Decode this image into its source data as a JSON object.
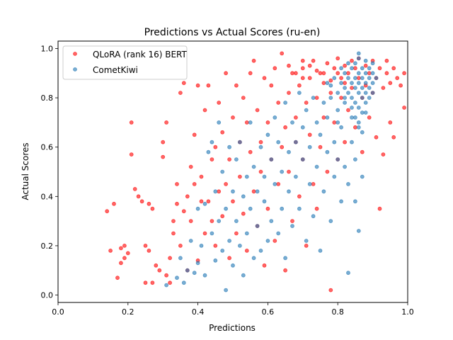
{
  "chart_data": {
    "type": "scatter",
    "title": "Predictions vs Actual Scores (ru-en)",
    "xlabel": "Predictions",
    "ylabel": "Actual Scores",
    "xlim": [
      0.0,
      1.0
    ],
    "ylim": [
      -0.03,
      1.03
    ],
    "xticks": [
      "0.0",
      "0.2",
      "0.4",
      "0.6",
      "0.8",
      "1.0"
    ],
    "yticks": [
      "0.0",
      "0.2",
      "0.4",
      "0.6",
      "0.8",
      "1.0"
    ],
    "grid": false,
    "legend_position": "top-left",
    "series": [
      {
        "name": "QLoRA (rank 16) BERT",
        "color": "#ff0000",
        "points": [
          [
            0.14,
            0.34
          ],
          [
            0.15,
            0.18
          ],
          [
            0.16,
            0.37
          ],
          [
            0.17,
            0.07
          ],
          [
            0.18,
            0.19
          ],
          [
            0.18,
            0.13
          ],
          [
            0.19,
            0.15
          ],
          [
            0.19,
            0.2
          ],
          [
            0.2,
            0.17
          ],
          [
            0.21,
            0.7
          ],
          [
            0.21,
            0.57
          ],
          [
            0.22,
            0.43
          ],
          [
            0.23,
            0.4
          ],
          [
            0.24,
            0.38
          ],
          [
            0.25,
            0.2
          ],
          [
            0.25,
            0.05
          ],
          [
            0.26,
            0.18
          ],
          [
            0.26,
            0.37
          ],
          [
            0.27,
            0.35
          ],
          [
            0.27,
            0.05
          ],
          [
            0.28,
            0.12
          ],
          [
            0.29,
            0.1
          ],
          [
            0.3,
            0.62
          ],
          [
            0.3,
            0.56
          ],
          [
            0.31,
            0.7
          ],
          [
            0.31,
            0.08
          ],
          [
            0.32,
            0.05
          ],
          [
            0.32,
            0.15
          ],
          [
            0.33,
            0.25
          ],
          [
            0.33,
            0.3
          ],
          [
            0.34,
            0.37
          ],
          [
            0.34,
            0.45
          ],
          [
            0.35,
            0.82
          ],
          [
            0.35,
            0.2
          ],
          [
            0.36,
            0.86
          ],
          [
            0.36,
            0.34
          ],
          [
            0.37,
            0.4
          ],
          [
            0.37,
            0.1
          ],
          [
            0.38,
            0.52
          ],
          [
            0.38,
            0.3
          ],
          [
            0.39,
            0.45
          ],
          [
            0.39,
            0.65
          ],
          [
            0.4,
            0.85
          ],
          [
            0.4,
            0.14
          ],
          [
            0.41,
            0.38
          ],
          [
            0.41,
            0.48
          ],
          [
            0.42,
            0.25
          ],
          [
            0.42,
            0.75
          ],
          [
            0.43,
            0.85
          ],
          [
            0.43,
            0.38
          ],
          [
            0.44,
            0.55
          ],
          [
            0.44,
            0.3
          ],
          [
            0.45,
            0.6
          ],
          [
            0.45,
            0.2
          ],
          [
            0.46,
            0.42
          ],
          [
            0.46,
            0.78
          ],
          [
            0.47,
            0.32
          ],
          [
            0.47,
            0.66
          ],
          [
            0.48,
            0.9
          ],
          [
            0.48,
            0.45
          ],
          [
            0.49,
            0.55
          ],
          [
            0.49,
            0.15
          ],
          [
            0.5,
            0.72
          ],
          [
            0.5,
            0.38
          ],
          [
            0.51,
            0.85
          ],
          [
            0.51,
            0.25
          ],
          [
            0.52,
            0.62
          ],
          [
            0.52,
            0.48
          ],
          [
            0.53,
            0.8
          ],
          [
            0.53,
            0.33
          ],
          [
            0.54,
            0.7
          ],
          [
            0.54,
            0.18
          ],
          [
            0.55,
            0.9
          ],
          [
            0.55,
            0.58
          ],
          [
            0.56,
            0.42
          ],
          [
            0.56,
            0.95
          ],
          [
            0.57,
            0.28
          ],
          [
            0.57,
            0.75
          ],
          [
            0.58,
            0.62
          ],
          [
            0.58,
            0.5
          ],
          [
            0.59,
            0.88
          ],
          [
            0.59,
            0.12
          ],
          [
            0.6,
            0.7
          ],
          [
            0.6,
            0.35
          ],
          [
            0.61,
            0.85
          ],
          [
            0.61,
            0.55
          ],
          [
            0.62,
            0.92
          ],
          [
            0.62,
            0.22
          ],
          [
            0.63,
            0.78
          ],
          [
            0.63,
            0.45
          ],
          [
            0.64,
            0.6
          ],
          [
            0.64,
            0.98
          ],
          [
            0.65,
            0.68
          ],
          [
            0.65,
            0.1
          ],
          [
            0.66,
            0.82
          ],
          [
            0.66,
            0.5
          ],
          [
            0.67,
            0.9
          ],
          [
            0.67,
            0.3
          ],
          [
            0.68,
            0.72
          ],
          [
            0.68,
            0.62
          ],
          [
            0.69,
            0.85
          ],
          [
            0.69,
            0.4
          ],
          [
            0.7,
            0.92
          ],
          [
            0.7,
            0.55
          ],
          [
            0.71,
            0.78
          ],
          [
            0.71,
            0.2
          ],
          [
            0.72,
            0.88
          ],
          [
            0.72,
            0.65
          ],
          [
            0.73,
            0.95
          ],
          [
            0.73,
            0.45
          ],
          [
            0.74,
            0.8
          ],
          [
            0.74,
            0.35
          ],
          [
            0.75,
            0.9
          ],
          [
            0.75,
            0.6
          ],
          [
            0.76,
            0.86
          ],
          [
            0.76,
            0.72
          ],
          [
            0.77,
            0.94
          ],
          [
            0.77,
            0.5
          ],
          [
            0.78,
            0.82
          ],
          [
            0.78,
            0.02
          ],
          [
            0.79,
            0.92
          ],
          [
            0.79,
            0.7
          ],
          [
            0.8,
            0.96
          ],
          [
            0.8,
            0.55
          ],
          [
            0.81,
            0.88
          ],
          [
            0.81,
            0.8
          ],
          [
            0.82,
            0.93
          ],
          [
            0.82,
            0.62
          ],
          [
            0.83,
            0.9
          ],
          [
            0.83,
            0.75
          ],
          [
            0.84,
            0.95
          ],
          [
            0.84,
            0.84
          ],
          [
            0.85,
            0.92
          ],
          [
            0.85,
            0.68
          ],
          [
            0.86,
            0.88
          ],
          [
            0.86,
            0.96
          ],
          [
            0.87,
            0.8
          ],
          [
            0.87,
            0.58
          ],
          [
            0.88,
            0.93
          ],
          [
            0.88,
            0.85
          ],
          [
            0.89,
            0.9
          ],
          [
            0.89,
            0.72
          ],
          [
            0.9,
            0.95
          ],
          [
            0.9,
            0.82
          ],
          [
            0.91,
            0.88
          ],
          [
            0.91,
            0.64
          ],
          [
            0.92,
            0.92
          ],
          [
            0.92,
            0.35
          ],
          [
            0.93,
            0.57
          ],
          [
            0.93,
            0.84
          ],
          [
            0.94,
            0.9
          ],
          [
            0.94,
            0.95
          ],
          [
            0.95,
            0.86
          ],
          [
            0.95,
            0.7
          ],
          [
            0.96,
            0.92
          ],
          [
            0.97,
            0.88
          ],
          [
            0.98,
            0.85
          ],
          [
            0.99,
            0.76
          ],
          [
            0.99,
            0.9
          ],
          [
            0.96,
            0.64
          ],
          [
            0.66,
            0.93
          ],
          [
            0.68,
            0.9
          ],
          [
            0.7,
            0.88
          ],
          [
            0.72,
            0.93
          ],
          [
            0.74,
            0.91
          ],
          [
            0.76,
            0.9
          ],
          [
            0.78,
            0.87
          ],
          [
            0.8,
            0.9
          ],
          [
            0.82,
            0.86
          ],
          [
            0.7,
            0.95
          ]
        ]
      },
      {
        "name": "CometKiwi",
        "color": "#1f77b4",
        "points": [
          [
            0.31,
            0.04
          ],
          [
            0.34,
            0.07
          ],
          [
            0.35,
            0.15
          ],
          [
            0.36,
            0.05
          ],
          [
            0.37,
            0.1
          ],
          [
            0.38,
            0.22
          ],
          [
            0.39,
            0.09
          ],
          [
            0.4,
            0.13
          ],
          [
            0.4,
            0.35
          ],
          [
            0.41,
            0.2
          ],
          [
            0.42,
            0.08
          ],
          [
            0.42,
            0.37
          ],
          [
            0.43,
            0.58
          ],
          [
            0.44,
            0.25
          ],
          [
            0.44,
            0.62
          ],
          [
            0.45,
            0.14
          ],
          [
            0.45,
            0.42
          ],
          [
            0.46,
            0.3
          ],
          [
            0.46,
            0.7
          ],
          [
            0.47,
            0.18
          ],
          [
            0.47,
            0.5
          ],
          [
            0.48,
            0.02
          ],
          [
            0.48,
            0.35
          ],
          [
            0.49,
            0.6
          ],
          [
            0.49,
            0.22
          ],
          [
            0.5,
            0.42
          ],
          [
            0.5,
            0.12
          ],
          [
            0.51,
            0.55
          ],
          [
            0.51,
            0.3
          ],
          [
            0.52,
            0.2
          ],
          [
            0.52,
            0.62
          ],
          [
            0.53,
            0.4
          ],
          [
            0.53,
            0.08
          ],
          [
            0.54,
            0.48
          ],
          [
            0.54,
            0.25
          ],
          [
            0.55,
            0.35
          ],
          [
            0.55,
            0.7
          ],
          [
            0.56,
            0.15
          ],
          [
            0.56,
            0.52
          ],
          [
            0.57,
            0.42
          ],
          [
            0.57,
            0.28
          ],
          [
            0.58,
            0.6
          ],
          [
            0.58,
            0.18
          ],
          [
            0.59,
            0.48
          ],
          [
            0.59,
            0.38
          ],
          [
            0.6,
            0.65
          ],
          [
            0.6,
            0.22
          ],
          [
            0.61,
            0.55
          ],
          [
            0.61,
            0.3
          ],
          [
            0.62,
            0.72
          ],
          [
            0.62,
            0.45
          ],
          [
            0.63,
            0.25
          ],
          [
            0.63,
            0.62
          ],
          [
            0.64,
            0.5
          ],
          [
            0.64,
            0.35
          ],
          [
            0.65,
            0.78
          ],
          [
            0.65,
            0.15
          ],
          [
            0.66,
            0.58
          ],
          [
            0.66,
            0.42
          ],
          [
            0.67,
            0.7
          ],
          [
            0.67,
            0.28
          ],
          [
            0.68,
            0.62
          ],
          [
            0.68,
            0.48
          ],
          [
            0.69,
            0.82
          ],
          [
            0.69,
            0.35
          ],
          [
            0.7,
            0.55
          ],
          [
            0.7,
            0.68
          ],
          [
            0.71,
            0.22
          ],
          [
            0.71,
            0.75
          ],
          [
            0.72,
            0.45
          ],
          [
            0.72,
            0.6
          ],
          [
            0.73,
            0.8
          ],
          [
            0.73,
            0.32
          ],
          [
            0.74,
            0.52
          ],
          [
            0.74,
            0.7
          ],
          [
            0.75,
            0.65
          ],
          [
            0.75,
            0.18
          ],
          [
            0.76,
            0.78
          ],
          [
            0.76,
            0.42
          ],
          [
            0.77,
            0.58
          ],
          [
            0.77,
            0.72
          ],
          [
            0.78,
            0.85
          ],
          [
            0.78,
            0.3
          ],
          [
            0.79,
            0.62
          ],
          [
            0.79,
            0.48
          ],
          [
            0.8,
            0.75
          ],
          [
            0.8,
            0.55
          ],
          [
            0.81,
            0.68
          ],
          [
            0.81,
            0.38
          ],
          [
            0.82,
            0.8
          ],
          [
            0.82,
            0.52
          ],
          [
            0.83,
            0.45
          ],
          [
            0.83,
            0.09
          ],
          [
            0.84,
            0.62
          ],
          [
            0.84,
            0.72
          ],
          [
            0.85,
            0.55
          ],
          [
            0.85,
            0.38
          ],
          [
            0.86,
            0.26
          ],
          [
            0.86,
            0.68
          ],
          [
            0.87,
            0.48
          ],
          [
            0.8,
            0.82
          ],
          [
            0.81,
            0.86
          ],
          [
            0.82,
            0.84
          ],
          [
            0.82,
            0.9
          ],
          [
            0.83,
            0.88
          ],
          [
            0.83,
            0.82
          ],
          [
            0.84,
            0.86
          ],
          [
            0.84,
            0.92
          ],
          [
            0.84,
            0.8
          ],
          [
            0.85,
            0.88
          ],
          [
            0.85,
            0.84
          ],
          [
            0.85,
            0.94
          ],
          [
            0.85,
            0.78
          ],
          [
            0.86,
            0.9
          ],
          [
            0.86,
            0.86
          ],
          [
            0.86,
            0.82
          ],
          [
            0.86,
            0.96
          ],
          [
            0.86,
            0.76
          ],
          [
            0.87,
            0.88
          ],
          [
            0.87,
            0.84
          ],
          [
            0.87,
            0.92
          ],
          [
            0.87,
            0.8
          ],
          [
            0.87,
            0.74
          ],
          [
            0.88,
            0.86
          ],
          [
            0.88,
            0.9
          ],
          [
            0.88,
            0.82
          ],
          [
            0.88,
            0.95
          ],
          [
            0.88,
            0.78
          ],
          [
            0.89,
            0.88
          ],
          [
            0.89,
            0.84
          ],
          [
            0.89,
            0.92
          ],
          [
            0.89,
            0.8
          ],
          [
            0.9,
            0.86
          ],
          [
            0.9,
            0.9
          ],
          [
            0.9,
            0.82
          ],
          [
            0.83,
            0.94
          ],
          [
            0.84,
            0.76
          ],
          [
            0.85,
            0.72
          ],
          [
            0.86,
            0.7
          ],
          [
            0.87,
            0.66
          ],
          [
            0.88,
            0.74
          ],
          [
            0.86,
            0.98
          ],
          [
            0.82,
            0.78
          ],
          [
            0.81,
            0.92
          ],
          [
            0.8,
            0.7
          ],
          [
            0.79,
            0.88
          ],
          [
            0.78,
            0.8
          ],
          [
            0.77,
            0.86
          ],
          [
            0.91,
            0.88
          ],
          [
            0.9,
            0.94
          ]
        ]
      }
    ]
  }
}
